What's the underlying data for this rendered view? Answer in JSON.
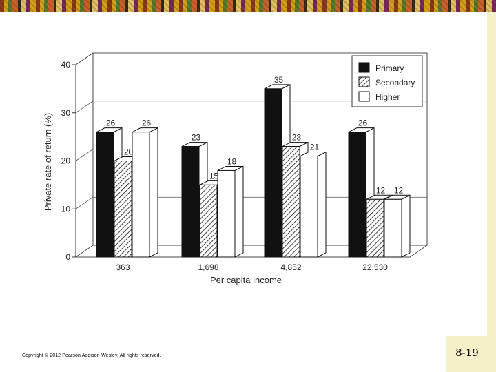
{
  "slide": {
    "number": "8-19",
    "copyright": "Copyright © 2012 Pearson Addison-Wesley. All rights reserved."
  },
  "chart_data": {
    "type": "bar",
    "title": "",
    "xlabel": "Per capita income",
    "ylabel": "Private rate of return (%)",
    "ylim": [
      0,
      40
    ],
    "yticks": [
      0,
      10,
      20,
      30,
      40
    ],
    "grid": true,
    "legend_position": "top-right",
    "categories": [
      "363",
      "1,698",
      "4,852",
      "22,530"
    ],
    "series": [
      {
        "name": "Primary",
        "values": [
          26,
          23,
          35,
          26
        ],
        "fill": "solid-black"
      },
      {
        "name": "Secondary",
        "values": [
          20,
          15,
          23,
          12
        ],
        "fill": "hatched"
      },
      {
        "name": "Higher",
        "values": [
          26,
          18,
          21,
          12
        ],
        "fill": "white"
      }
    ]
  }
}
